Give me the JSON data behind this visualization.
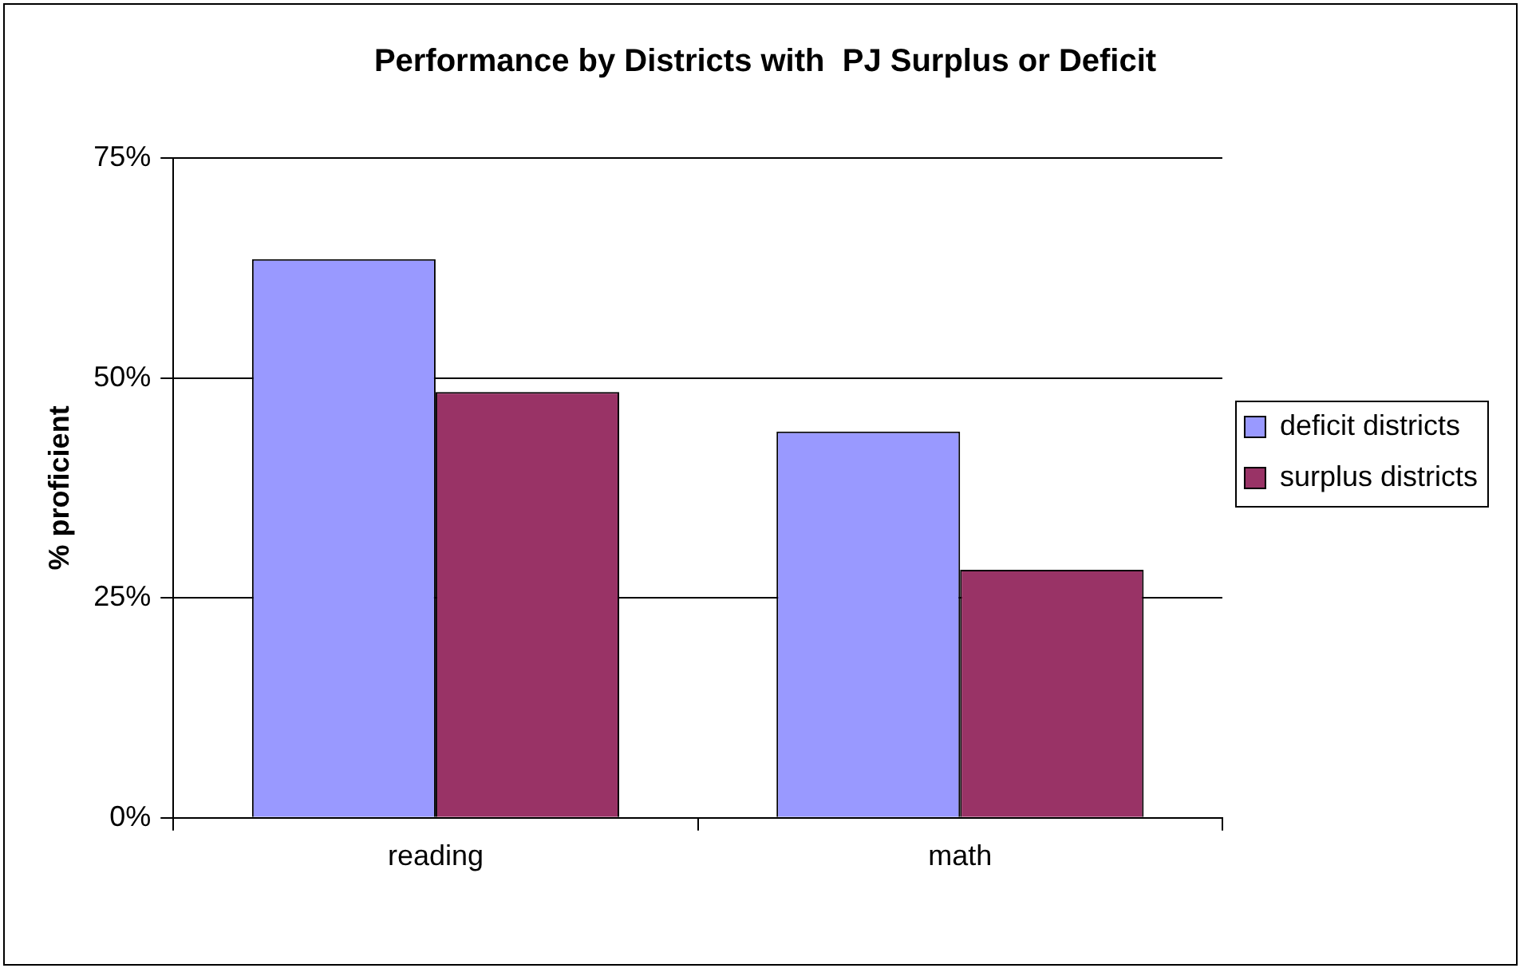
{
  "chart_data": {
    "type": "bar",
    "title": "Performance by Districts with  PJ Surplus or Deficit",
    "ylabel": "% proficient",
    "categories": [
      "reading",
      "math"
    ],
    "series": [
      {
        "name": "deficit districts",
        "color": "#9999ff",
        "values": [
          63.5,
          43.9
        ]
      },
      {
        "name": "surplus districts",
        "color": "#993366",
        "values": [
          48.4,
          28.2
        ]
      }
    ],
    "ylim": [
      0,
      75
    ],
    "yticks": [
      {
        "value": 0,
        "label": "0%"
      },
      {
        "value": 25,
        "label": "25%"
      },
      {
        "value": 50,
        "label": "50%"
      },
      {
        "value": 75,
        "label": "75%"
      }
    ],
    "grid": "y",
    "legend": "right"
  }
}
